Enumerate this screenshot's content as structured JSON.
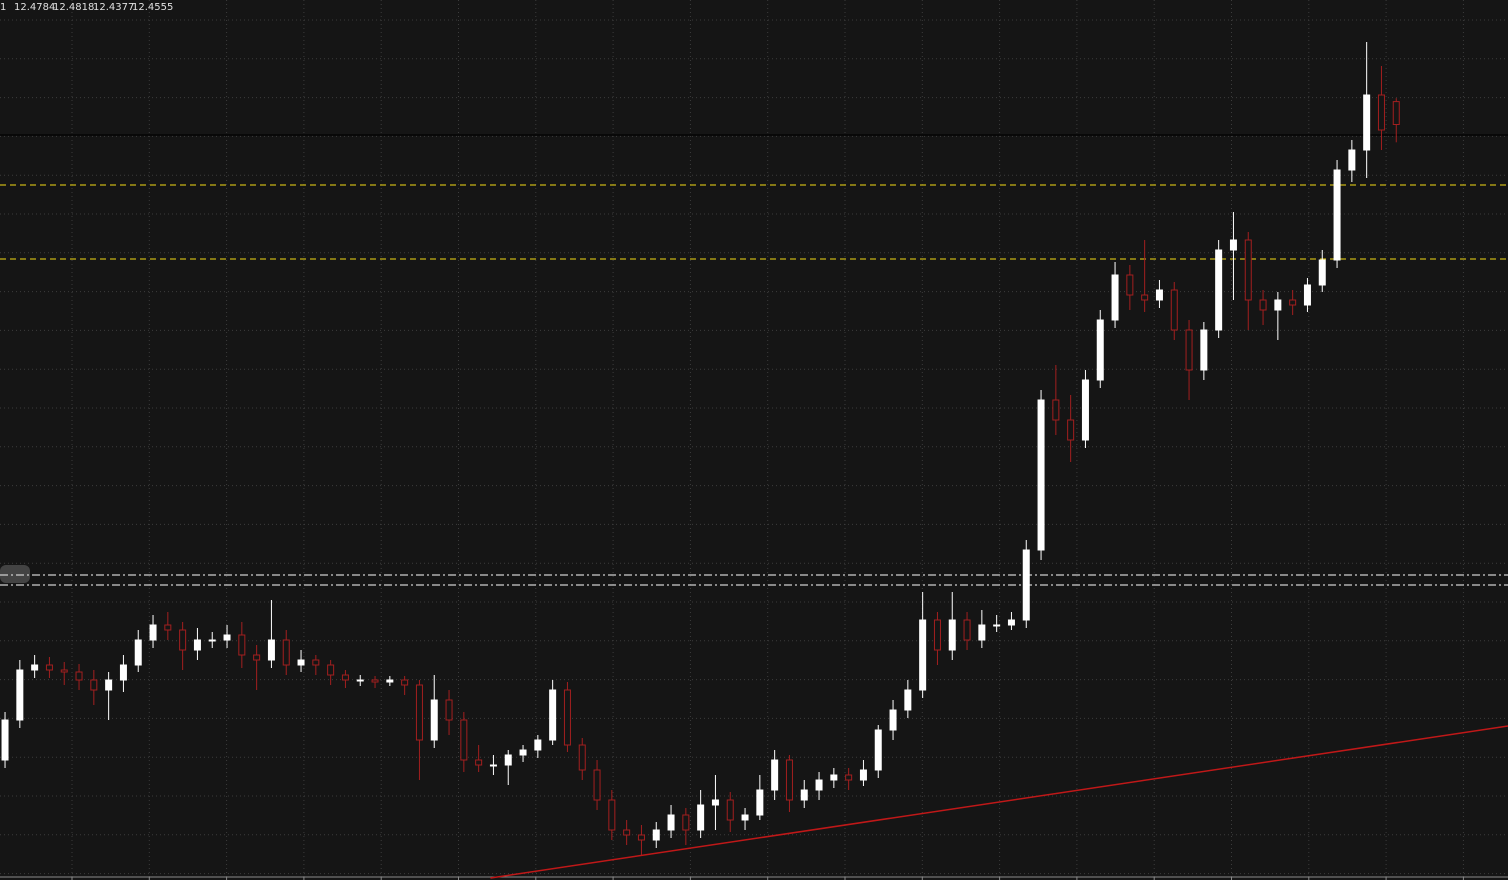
{
  "chart_data": {
    "type": "candlestick",
    "header_prefix": "1",
    "xlim": [
      -0.34,
      101.55
    ],
    "ylim": [
      11.7,
      12.58
    ],
    "grid": true,
    "up_color": "#ffffff",
    "down_color": "#a31f1f",
    "candles": [
      [
        11.82,
        11.868,
        11.812,
        11.86
      ],
      [
        11.86,
        11.92,
        11.852,
        11.91
      ],
      [
        11.91,
        11.925,
        11.902,
        11.915
      ],
      [
        11.915,
        11.923,
        11.902,
        11.91
      ],
      [
        11.91,
        11.918,
        11.895,
        11.908
      ],
      [
        11.908,
        11.916,
        11.89,
        11.9
      ],
      [
        11.9,
        11.91,
        11.875,
        11.89
      ],
      [
        11.89,
        11.908,
        11.86,
        11.9
      ],
      [
        11.9,
        11.925,
        11.888,
        11.915
      ],
      [
        11.915,
        11.95,
        11.908,
        11.94
      ],
      [
        11.94,
        11.965,
        11.932,
        11.955
      ],
      [
        11.955,
        11.968,
        11.94,
        11.95
      ],
      [
        11.95,
        11.958,
        11.91,
        11.93
      ],
      [
        11.93,
        11.952,
        11.92,
        11.94
      ],
      [
        11.94,
        11.948,
        11.932,
        11.94
      ],
      [
        11.94,
        11.955,
        11.932,
        11.945
      ],
      [
        11.945,
        11.958,
        11.912,
        11.925
      ],
      [
        11.925,
        11.935,
        11.89,
        11.92
      ],
      [
        11.92,
        11.98,
        11.912,
        11.94
      ],
      [
        11.94,
        11.95,
        11.905,
        11.915
      ],
      [
        11.915,
        11.93,
        11.908,
        11.92
      ],
      [
        11.92,
        11.925,
        11.905,
        11.915
      ],
      [
        11.915,
        11.92,
        11.895,
        11.905
      ],
      [
        11.905,
        11.91,
        11.892,
        11.9
      ],
      [
        11.9,
        11.905,
        11.894,
        11.9
      ],
      [
        11.9,
        11.904,
        11.892,
        11.898
      ],
      [
        11.898,
        11.904,
        11.894,
        11.9
      ],
      [
        11.9,
        11.904,
        11.885,
        11.895
      ],
      [
        11.895,
        11.9,
        11.8,
        11.84
      ],
      [
        11.84,
        11.905,
        11.832,
        11.88
      ],
      [
        11.88,
        11.89,
        11.845,
        11.86
      ],
      [
        11.86,
        11.868,
        11.808,
        11.82
      ],
      [
        11.82,
        11.835,
        11.808,
        11.815
      ],
      [
        11.815,
        11.825,
        11.805,
        11.815
      ],
      [
        11.815,
        11.83,
        11.795,
        11.825
      ],
      [
        11.825,
        11.835,
        11.818,
        11.83
      ],
      [
        11.83,
        11.845,
        11.822,
        11.84
      ],
      [
        11.84,
        11.9,
        11.835,
        11.89
      ],
      [
        11.89,
        11.898,
        11.828,
        11.835
      ],
      [
        11.835,
        11.842,
        11.8,
        11.81
      ],
      [
        11.81,
        11.82,
        11.77,
        11.78
      ],
      [
        11.78,
        11.79,
        11.74,
        11.75
      ],
      [
        11.75,
        11.76,
        11.735,
        11.745
      ],
      [
        11.745,
        11.755,
        11.725,
        11.74
      ],
      [
        11.74,
        11.758,
        11.732,
        11.75
      ],
      [
        11.75,
        11.775,
        11.742,
        11.765
      ],
      [
        11.765,
        11.772,
        11.735,
        11.75
      ],
      [
        11.75,
        11.79,
        11.742,
        11.775
      ],
      [
        11.775,
        11.805,
        11.75,
        11.78
      ],
      [
        11.78,
        11.788,
        11.748,
        11.76
      ],
      [
        11.76,
        11.772,
        11.75,
        11.765
      ],
      [
        11.765,
        11.805,
        11.76,
        11.79
      ],
      [
        11.79,
        11.83,
        11.78,
        11.82
      ],
      [
        11.82,
        11.825,
        11.768,
        11.78
      ],
      [
        11.78,
        11.8,
        11.772,
        11.79
      ],
      [
        11.79,
        11.808,
        11.78,
        11.8
      ],
      [
        11.8,
        11.812,
        11.792,
        11.805
      ],
      [
        11.805,
        11.812,
        11.79,
        11.8
      ],
      [
        11.8,
        11.82,
        11.794,
        11.81
      ],
      [
        11.81,
        11.855,
        11.802,
        11.85
      ],
      [
        11.85,
        11.88,
        11.84,
        11.87
      ],
      [
        11.87,
        11.9,
        11.862,
        11.89
      ],
      [
        11.89,
        11.988,
        11.882,
        11.96
      ],
      [
        11.96,
        11.968,
        11.915,
        11.93
      ],
      [
        11.93,
        11.988,
        11.92,
        11.96
      ],
      [
        11.96,
        11.968,
        11.93,
        11.94
      ],
      [
        11.94,
        11.97,
        11.932,
        11.955
      ],
      [
        11.955,
        11.965,
        11.948,
        11.955
      ],
      [
        11.955,
        11.968,
        11.95,
        11.96
      ],
      [
        11.96,
        12.04,
        11.952,
        12.03
      ],
      [
        12.03,
        12.19,
        12.02,
        12.18
      ],
      [
        12.18,
        12.215,
        12.145,
        12.16
      ],
      [
        12.16,
        12.185,
        12.118,
        12.14
      ],
      [
        12.14,
        12.21,
        12.132,
        12.2
      ],
      [
        12.2,
        12.27,
        12.192,
        12.26
      ],
      [
        12.26,
        12.318,
        12.252,
        12.305
      ],
      [
        12.305,
        12.315,
        12.27,
        12.285
      ],
      [
        12.285,
        12.34,
        12.268,
        12.28
      ],
      [
        12.28,
        12.3,
        12.272,
        12.29
      ],
      [
        12.29,
        12.298,
        12.24,
        12.25
      ],
      [
        12.25,
        12.26,
        12.18,
        12.21
      ],
      [
        12.21,
        12.258,
        12.2,
        12.25
      ],
      [
        12.25,
        12.34,
        12.242,
        12.33
      ],
      [
        12.33,
        12.368,
        12.28,
        12.34
      ],
      [
        12.34,
        12.348,
        12.25,
        12.28
      ],
      [
        12.28,
        12.29,
        12.255,
        12.27
      ],
      [
        12.27,
        12.288,
        12.24,
        12.28
      ],
      [
        12.28,
        12.29,
        12.265,
        12.275
      ],
      [
        12.275,
        12.302,
        12.268,
        12.295
      ],
      [
        12.295,
        12.33,
        12.288,
        12.32
      ],
      [
        12.32,
        12.42,
        12.312,
        12.41
      ],
      [
        12.41,
        12.44,
        12.398,
        12.43
      ],
      [
        12.43,
        12.538,
        12.402,
        12.485
      ],
      [
        12.485,
        12.514,
        12.43,
        12.45
      ],
      [
        12.4784,
        12.4818,
        12.4377,
        12.4555
      ]
    ],
    "levels": [
      {
        "value": 12.395,
        "color": "#c8b416",
        "style": "dash"
      },
      {
        "value": 12.321,
        "color": "#c8b416",
        "style": "dash"
      },
      {
        "value": 12.005,
        "color": "#cfcfcf",
        "style": "dashdot"
      },
      {
        "value": 11.995,
        "color": "#cfcfcf",
        "style": "dashdot"
      }
    ],
    "trendline": {
      "color": "#c01818",
      "x": [
        32.8,
        101.55
      ],
      "y": [
        11.702,
        11.854
      ]
    }
  }
}
